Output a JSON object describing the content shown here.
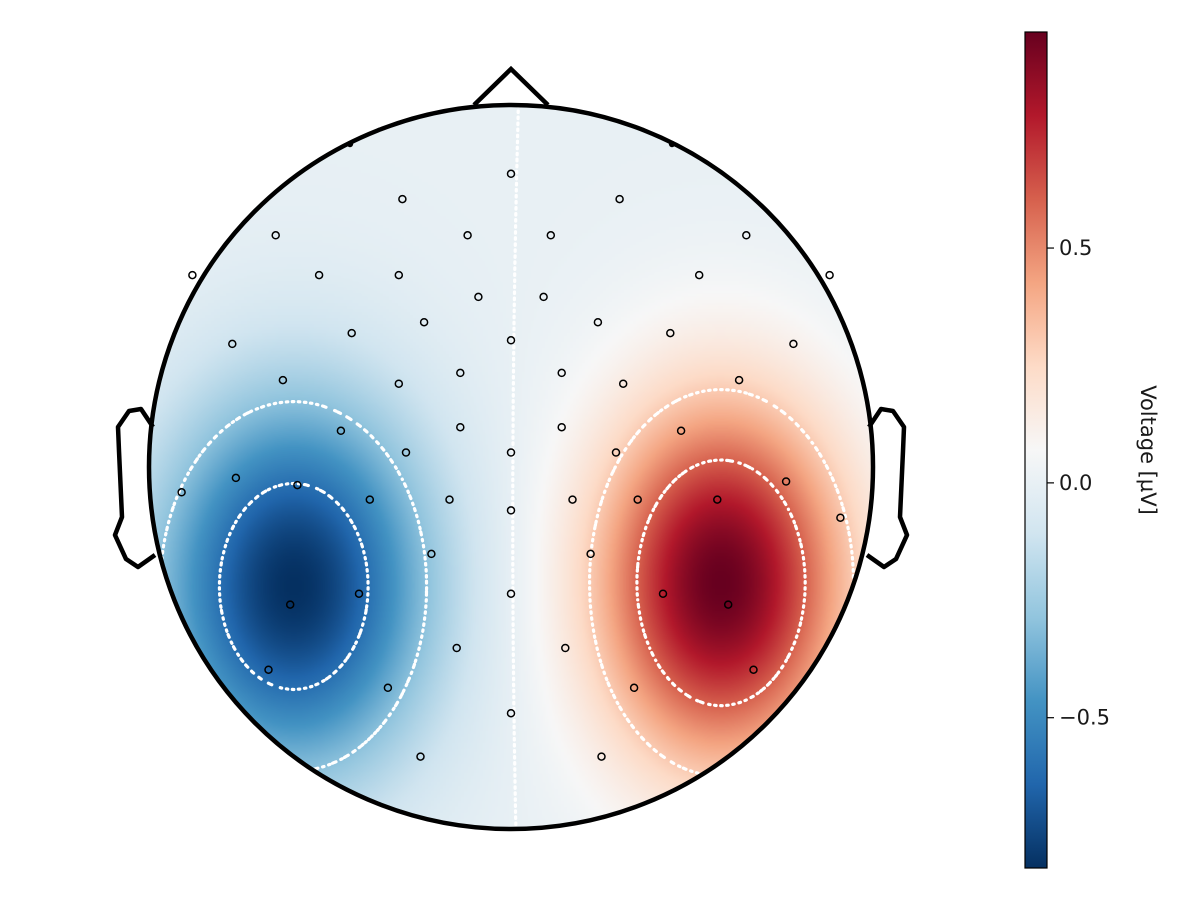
{
  "chart_data": {
    "type": "heatmap",
    "subtype": "eeg-topomap",
    "title": "",
    "colormap": "RdBu_r",
    "colors": {
      "negative_end": "#08306b",
      "zero": "#f7f7f7",
      "positive_end": "#67001f",
      "outline": "#000000",
      "contour": "#ffffff"
    },
    "colorbar": {
      "label": "Voltage [µV]",
      "range": [
        -0.82,
        0.96
      ],
      "ticks": [
        {
          "value": 0.5,
          "label": "0.5"
        },
        {
          "value": 0.0,
          "label": "0.0"
        },
        {
          "value": -0.5,
          "label": "−0.5"
        }
      ]
    },
    "contour_levels": [
      -0.6,
      -0.3,
      0.0,
      0.3,
      0.6
    ],
    "extrema": [
      {
        "name": "negative-peak",
        "x": -0.6,
        "y": -0.33,
        "value": -0.82
      },
      {
        "name": "positive-peak",
        "x": 0.58,
        "y": -0.32,
        "value": 0.96
      }
    ],
    "electrodes": [
      [
        0.0,
        0.81
      ],
      [
        -0.3,
        0.74
      ],
      [
        0.3,
        0.74
      ],
      [
        -0.65,
        0.64
      ],
      [
        -0.12,
        0.64
      ],
      [
        0.11,
        0.64
      ],
      [
        0.65,
        0.64
      ],
      [
        -0.88,
        0.53
      ],
      [
        -0.53,
        0.53
      ],
      [
        -0.31,
        0.53
      ],
      [
        -0.09,
        0.47
      ],
      [
        0.09,
        0.47
      ],
      [
        0.52,
        0.53
      ],
      [
        0.88,
        0.53
      ],
      [
        -0.77,
        0.34
      ],
      [
        -0.44,
        0.37
      ],
      [
        -0.24,
        0.4
      ],
      [
        0.24,
        0.4
      ],
      [
        0.44,
        0.37
      ],
      [
        0.78,
        0.34
      ],
      [
        -0.63,
        0.24
      ],
      [
        -0.31,
        0.23
      ],
      [
        -0.14,
        0.26
      ],
      [
        0.0,
        0.35
      ],
      [
        0.14,
        0.26
      ],
      [
        0.31,
        0.23
      ],
      [
        0.63,
        0.24
      ],
      [
        -0.47,
        0.1
      ],
      [
        -0.14,
        0.11
      ],
      [
        0.14,
        0.11
      ],
      [
        0.47,
        0.1
      ],
      [
        -0.29,
        0.04
      ],
      [
        0.0,
        0.04
      ],
      [
        0.29,
        0.04
      ],
      [
        -0.91,
        -0.07
      ],
      [
        -0.76,
        -0.03
      ],
      [
        -0.59,
        -0.05
      ],
      [
        -0.39,
        -0.09
      ],
      [
        -0.17,
        -0.09
      ],
      [
        0.0,
        -0.12
      ],
      [
        0.17,
        -0.09
      ],
      [
        0.35,
        -0.09
      ],
      [
        0.57,
        -0.09
      ],
      [
        0.76,
        -0.04
      ],
      [
        0.91,
        -0.14
      ],
      [
        -0.22,
        -0.24
      ],
      [
        0.22,
        -0.24
      ],
      [
        -0.61,
        -0.38
      ],
      [
        -0.42,
        -0.35
      ],
      [
        0.0,
        -0.35
      ],
      [
        0.42,
        -0.35
      ],
      [
        0.6,
        -0.38
      ],
      [
        -0.15,
        -0.5
      ],
      [
        0.15,
        -0.5
      ],
      [
        -0.67,
        -0.56
      ],
      [
        0.67,
        -0.56
      ],
      [
        -0.34,
        -0.61
      ],
      [
        0.34,
        -0.61
      ],
      [
        0.0,
        -0.68
      ],
      [
        -0.25,
        -0.8
      ],
      [
        0.25,
        -0.8
      ]
    ]
  }
}
